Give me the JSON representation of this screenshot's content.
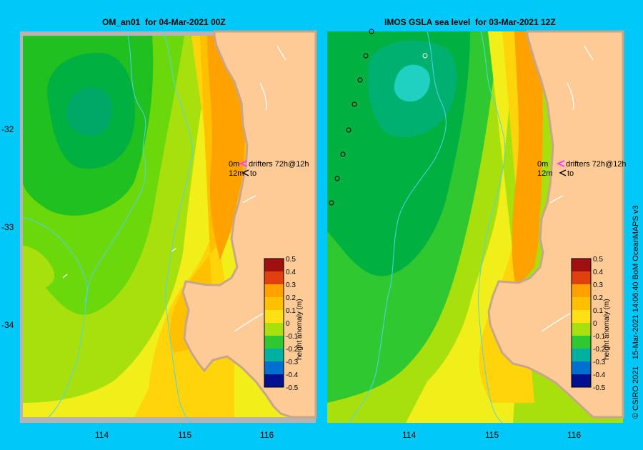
{
  "colors": {
    "background": "#00c8f8",
    "land": "#fecb96",
    "coast": "#c8a68a",
    "out_of_domain": "#b4b4b4",
    "isobath": "#4fd4e8",
    "drifter_mark": "#ff40ff"
  },
  "panels": [
    {
      "title": "OM_an01  for 04-Mar-2021 00Z",
      "legend": {
        "drifters": "drifters 72h@12h",
        "m0": "0m",
        "m12": "12m",
        "to": "to"
      },
      "colorbar_label": "height anomaly (m)"
    },
    {
      "title": "IMOS GSLA sea level  for 03-Mar-2021 12Z",
      "legend": {
        "drifters": "drifters 72h@12h",
        "m0": "0m",
        "m12": "12m",
        "to": "to"
      },
      "colorbar_label": "height anomaly (m)"
    }
  ],
  "colorbar_ticks": [
    "0.5",
    "0.4",
    "0.3",
    "0.2",
    "0.1",
    "0",
    "-0.1",
    "-0.2",
    "-0.3",
    "-0.4",
    "-0.5"
  ],
  "lat_ticks": [
    "-32",
    "-33",
    "-34"
  ],
  "lon_ticks_left": [
    "114",
    "115",
    "116"
  ],
  "lon_ticks_right": [
    "114",
    "115",
    "116"
  ],
  "credit": "© CSIRO 2021   15-Mar-2021 14:06:40 BoM OceanMAPS v3"
}
